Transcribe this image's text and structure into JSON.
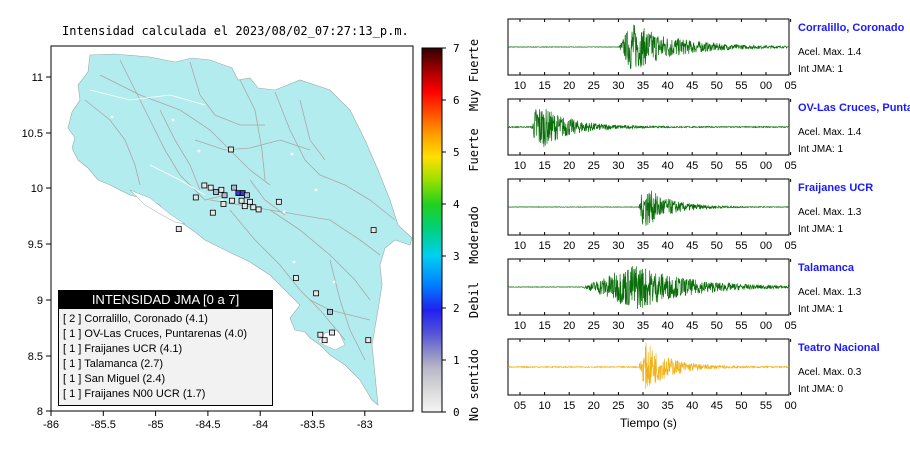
{
  "map": {
    "title": "Intensidad calculada el 2023/08/02_07:27:13_p.m.",
    "x_ticks": [
      "-86",
      "-85.5",
      "-85",
      "-84.5",
      "-84",
      "-83.5",
      "-83"
    ],
    "y_ticks": [
      "11",
      "10.5",
      "10",
      "9.5",
      "9",
      "8.5",
      "8"
    ],
    "land_color": "#b3ecee",
    "stations": [
      {
        "lon": -84.31,
        "lat": 10.4,
        "intensity": 0
      },
      {
        "lon": -84.56,
        "lat": 10.07,
        "intensity": 0
      },
      {
        "lon": -84.5,
        "lat": 10.05,
        "intensity": 0
      },
      {
        "lon": -84.45,
        "lat": 10.01,
        "intensity": 1
      },
      {
        "lon": -84.4,
        "lat": 10.03,
        "intensity": 0
      },
      {
        "lon": -84.37,
        "lat": 9.98,
        "intensity": 1
      },
      {
        "lon": -84.28,
        "lat": 10.05,
        "intensity": 1
      },
      {
        "lon": -84.24,
        "lat": 10.0,
        "intensity": 2
      },
      {
        "lon": -84.2,
        "lat": 10.0,
        "intensity": 2
      },
      {
        "lon": -84.16,
        "lat": 9.98,
        "intensity": 1
      },
      {
        "lon": -84.21,
        "lat": 9.93,
        "intensity": 0
      },
      {
        "lon": -84.3,
        "lat": 9.93,
        "intensity": 0
      },
      {
        "lon": -84.13,
        "lat": 9.92,
        "intensity": 0
      },
      {
        "lon": -84.1,
        "lat": 9.87,
        "intensity": 0
      },
      {
        "lon": -84.05,
        "lat": 9.85,
        "intensity": 0
      },
      {
        "lon": -84.18,
        "lat": 9.88,
        "intensity": 0
      },
      {
        "lon": -84.38,
        "lat": 9.9,
        "intensity": 0
      },
      {
        "lon": -84.48,
        "lat": 9.82,
        "intensity": 0
      },
      {
        "lon": -84.64,
        "lat": 9.96,
        "intensity": 0
      },
      {
        "lon": -84.8,
        "lat": 9.67,
        "intensity": 0
      },
      {
        "lon": -83.86,
        "lat": 9.92,
        "intensity": 0
      },
      {
        "lon": -83.51,
        "lat": 9.08,
        "intensity": 0
      },
      {
        "lon": -83.38,
        "lat": 8.91,
        "intensity": 1
      },
      {
        "lon": -83.36,
        "lat": 8.72,
        "intensity": 0
      },
      {
        "lon": -83.47,
        "lat": 8.7,
        "intensity": 0
      },
      {
        "lon": -83.43,
        "lat": 8.65,
        "intensity": 0
      },
      {
        "lon": -83.02,
        "lat": 8.65,
        "intensity": 0
      },
      {
        "lon": -82.97,
        "lat": 9.66,
        "intensity": 0
      },
      {
        "lon": -83.7,
        "lat": 9.22,
        "intensity": 0
      }
    ]
  },
  "legend": {
    "title": "INTENSIDAD JMA [0 a 7]",
    "items": [
      "[ 2 ]  Corralillo, Coronado (4.1)",
      "[ 1 ]  OV-Las Cruces, Puntarenas (4.0)",
      "[ 1 ]  Fraijanes UCR (4.1)",
      "[ 1 ]  Talamanca (2.7)",
      "[ 1 ]  San Miguel (2.4)",
      "[ 1 ]  Fraijanes N00 UCR (1.7)"
    ]
  },
  "colorbar": {
    "ticks": [
      "7",
      "6",
      "5",
      "4",
      "3",
      "2",
      "1",
      "0"
    ],
    "labels": [
      "Muy Fuerte",
      "Fuerte",
      "Moderado",
      "Debil",
      "No sentido"
    ],
    "min": 0,
    "max": 7
  },
  "traces": [
    {
      "name": "Corralillo, Coronado",
      "acel": "Acel. Max. 1.4",
      "int": "Int JMA: 1",
      "color": "#0a6e0a",
      "ticks": [
        "10",
        "15",
        "20",
        "25",
        "30",
        "35",
        "40",
        "45",
        "50",
        "55",
        "00",
        "05"
      ],
      "t0": 8,
      "onset": 30.5,
      "peak": 33,
      "decay": 9,
      "amp": 1.0,
      "noise": 0.01
    },
    {
      "name": "OV-Las Cruces, Puntar",
      "acel": "Acel. Max. 1.4",
      "int": "Int JMA: 1",
      "color": "#0a6e0a",
      "ticks": [
        "10",
        "15",
        "20",
        "25",
        "30",
        "35",
        "40",
        "45",
        "50",
        "55",
        "00",
        "05"
      ],
      "t0": 8,
      "onset": 12.8,
      "peak": 13.8,
      "decay": 6,
      "amp": 1.0,
      "noise": 0.02
    },
    {
      "name": "Fraijanes UCR",
      "acel": "Acel. Max. 1.3",
      "int": "Int JMA: 1",
      "color": "#0a6e0a",
      "ticks": [
        "10",
        "15",
        "20",
        "25",
        "30",
        "35",
        "40",
        "45",
        "50",
        "55",
        "00",
        "05"
      ],
      "t0": 8,
      "onset": 34.5,
      "peak": 35.5,
      "decay": 5,
      "amp": 0.9,
      "noise": 0.01
    },
    {
      "name": "Talamanca",
      "acel": "Acel. Max. 1.3",
      "int": "Int JMA: 1",
      "color": "#0a6e0a",
      "ticks": [
        "10",
        "15",
        "20",
        "25",
        "30",
        "35",
        "40",
        "45",
        "50",
        "55",
        "00",
        "05"
      ],
      "t0": 8,
      "onset": 23,
      "peak": 34,
      "decay": 10,
      "amp": 0.95,
      "noise": 0.01
    },
    {
      "name": "Teatro Nacional",
      "acel": "Acel. Max. 0.3",
      "int": "Int JMA: 0",
      "color": "#f2b21a",
      "ticks": [
        "05",
        "10",
        "15",
        "20",
        "25",
        "30",
        "35",
        "40",
        "45",
        "50",
        "55",
        "00"
      ],
      "t0": 3,
      "onset": 29.5,
      "peak": 31,
      "decay": 5,
      "amp": 0.95,
      "noise": 0.02
    }
  ],
  "xlabel": "Tiempo (s)"
}
